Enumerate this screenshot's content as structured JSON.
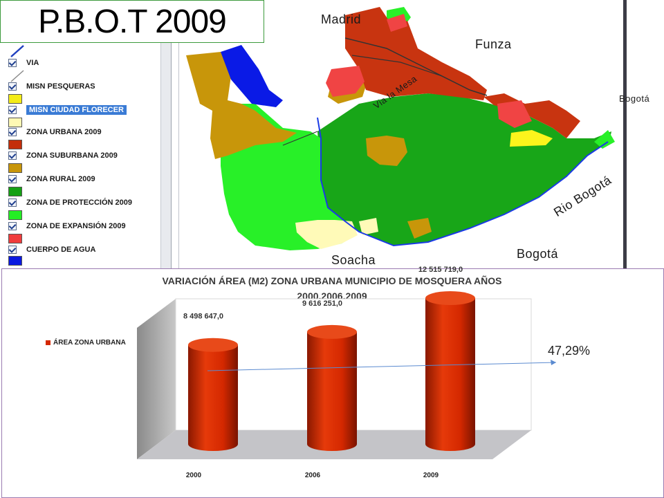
{
  "slide": {
    "title": "P.B.O.T 2009",
    "percent_change": "47,29%"
  },
  "legend_panel": {
    "items": [
      {
        "label": "VIA",
        "swatch": null
      },
      {
        "label": "MISN PESQUERAS",
        "swatch": "#f4ec18"
      },
      {
        "label": "MISN CIUDAD FLORECER",
        "swatch": "#fff9b4",
        "selected": true
      },
      {
        "label": "ZONA URBANA 2009",
        "swatch": "#c42e0a"
      },
      {
        "label": "ZONA SUBURBANA 2009",
        "swatch": "#c8960a"
      },
      {
        "label": "ZONA RURAL 2009",
        "swatch": "#14a014"
      },
      {
        "label": "ZONA DE PROTECCIÓN 2009",
        "swatch": "#24ee24"
      },
      {
        "label": "ZONA DE EXPANSIÓN 2009",
        "swatch": "#f03c3c"
      },
      {
        "label": "CUERPO DE AGUA",
        "swatch": "#0a18e0"
      }
    ]
  },
  "map": {
    "labels": {
      "madrid": "Madrid",
      "funza": "Funza",
      "bogota_right": "Bogotá",
      "via_la_mesa": "Via la Mesa",
      "rio_bogota": "Rio Bogotá",
      "soacha": "Soacha",
      "bogota_bottom": "Bogotá"
    },
    "colors": {
      "urbana": "#c83410",
      "suburbana": "#c8960a",
      "rural": "#18a618",
      "proteccion": "#28f028",
      "expansion": "#f04444",
      "agua": "#0a1ae6",
      "pesqueras": "#fcf41c",
      "florecer": "#fffab8"
    }
  },
  "chart_data": {
    "type": "bar",
    "title": "VARIACIÓN ÁREA (M2) ZONA URBANA MUNICIPIO DE MOSQUERA AÑOS 2000,2006,2009",
    "title_lines": [
      "VARIACIÓN ÁREA (M2) ZONA URBANA MUNICIPIO DE MOSQUERA AÑOS",
      "2000,2006,2009"
    ],
    "categories": [
      "2000",
      "2006",
      "2009"
    ],
    "series": [
      {
        "name": "ÁREA ZONA URBANA",
        "values": [
          8498647.0,
          9616251.0,
          12515719.0
        ],
        "color": "#d42800"
      }
    ],
    "data_labels": [
      "8 498 647,0",
      "9 616 251,0",
      "12 515 719,0"
    ],
    "ylim": [
      0,
      14000000
    ],
    "grid": false,
    "legend": "left"
  }
}
